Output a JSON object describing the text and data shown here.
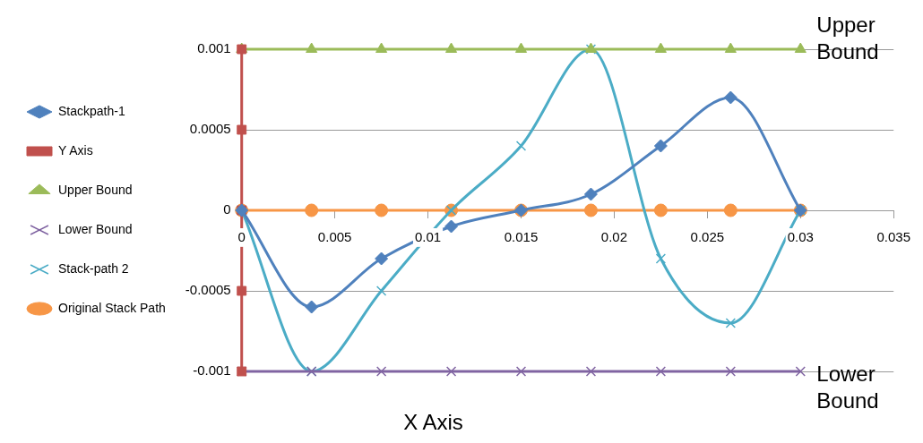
{
  "chart_data": {
    "type": "line",
    "xlabel": "X Axis",
    "xlim": [
      0,
      0.035
    ],
    "xticks": [
      0,
      0.005,
      0.01,
      0.015,
      0.02,
      0.025,
      0.03,
      0.035
    ],
    "ylim": [
      -0.001,
      0.001
    ],
    "yticks": [
      -0.001,
      -0.0005,
      0,
      0.0005,
      0.001
    ],
    "grid": "y",
    "legend": "left",
    "series": [
      {
        "name": "Stackpath-1",
        "color": "#4f81bd",
        "marker": "diamond",
        "x": [
          0,
          0.00375,
          0.0075,
          0.01125,
          0.015,
          0.01875,
          0.0225,
          0.02625,
          0.03
        ],
        "values": [
          0,
          -0.0006,
          -0.0003,
          -0.0001,
          0,
          0.0001,
          0.0004,
          0.0007,
          0
        ]
      },
      {
        "name": "Y Axis",
        "color": "#c0504d",
        "marker": "square",
        "x": [
          0,
          0,
          0,
          0,
          0
        ],
        "values": [
          0.001,
          0.0005,
          0,
          -0.0005,
          -0.001
        ]
      },
      {
        "name": "Upper Bound",
        "color": "#9bbb59",
        "marker": "triangle",
        "x": [
          0,
          0.00375,
          0.0075,
          0.01125,
          0.015,
          0.01875,
          0.0225,
          0.02625,
          0.03
        ],
        "values": [
          0.001,
          0.001,
          0.001,
          0.001,
          0.001,
          0.001,
          0.001,
          0.001,
          0.001
        ]
      },
      {
        "name": "Lower Bound",
        "color": "#8064a2",
        "marker": "cross",
        "x": [
          0,
          0.00375,
          0.0075,
          0.01125,
          0.015,
          0.01875,
          0.0225,
          0.02625,
          0.03
        ],
        "values": [
          -0.001,
          -0.001,
          -0.001,
          -0.001,
          -0.001,
          -0.001,
          -0.001,
          -0.001,
          -0.001
        ]
      },
      {
        "name": "Stack-path 2",
        "color": "#4bacc6",
        "marker": "cross",
        "x": [
          0,
          0.00375,
          0.0075,
          0.01125,
          0.015,
          0.01875,
          0.0225,
          0.02625,
          0.03
        ],
        "values": [
          0,
          -0.001,
          -0.0005,
          0,
          0.0004,
          0.001,
          -0.0003,
          -0.0007,
          0
        ]
      },
      {
        "name": "Original Stack Path",
        "color": "#f79646",
        "marker": "circle",
        "x": [
          0,
          0.00375,
          0.0075,
          0.01125,
          0.015,
          0.01875,
          0.0225,
          0.02625,
          0.03
        ],
        "values": [
          0,
          0,
          0,
          0,
          0,
          0,
          0,
          0,
          0
        ]
      }
    ],
    "annotations": [
      {
        "text": "Upper Bound",
        "x": 0.03,
        "y": 0.001
      },
      {
        "text": "Lower Bound",
        "x": 0.03,
        "y": -0.001
      }
    ]
  }
}
